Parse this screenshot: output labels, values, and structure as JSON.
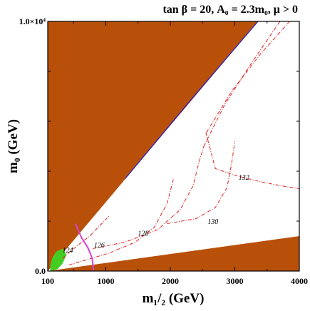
{
  "chart_data": {
    "type": "line",
    "title": "tan β = 20, A₀ = 2.3m₀,  μ > 0",
    "xlabel": "m₁/₂ (GeV)",
    "ylabel": "m₀ (GeV)",
    "xlim": [
      100,
      4000
    ],
    "ylim": [
      0,
      10000
    ],
    "x_ticks": [
      {
        "value": 100,
        "label": "100"
      },
      {
        "value": 1000,
        "label": "1000"
      },
      {
        "value": 2000,
        "label": "2000"
      },
      {
        "value": 3000,
        "label": "3000"
      },
      {
        "value": 4000,
        "label": "4000"
      }
    ],
    "y_ticks": [
      {
        "value": 0,
        "label": "0.0"
      },
      {
        "value": 10000,
        "label": "1.0×10⁴"
      }
    ],
    "colors": {
      "excluded": "#b8500a",
      "higgs_contour": "#e02020",
      "pink_curve": "#e040d0",
      "green_region": "#44cc22",
      "blue_edge": "#2020cc"
    },
    "regions": [
      {
        "name": "upper_excluded",
        "points": [
          [
            100,
            10000
          ],
          [
            3360,
            10000
          ],
          [
            100,
            0
          ]
        ]
      },
      {
        "name": "lower_excluded",
        "points": [
          [
            100,
            0
          ],
          [
            4000,
            1400
          ],
          [
            4000,
            0
          ]
        ]
      },
      {
        "name": "green_region",
        "points": [
          [
            140,
            0
          ],
          [
            250,
            80
          ],
          [
            330,
            300
          ],
          [
            390,
            650
          ],
          [
            330,
            900
          ],
          [
            230,
            780
          ],
          [
            170,
            520
          ],
          [
            140,
            250
          ]
        ]
      }
    ],
    "series": [
      {
        "label": "124",
        "x": [
          330,
          420,
          560,
          750,
          900,
          1050
        ],
        "y": [
          500,
          720,
          1020,
          1400,
          1800,
          2200
        ],
        "label_at": [
          410,
          750
        ]
      },
      {
        "label": "126",
        "x": [
          430,
          700,
          1050,
          1450,
          1750,
          1950,
          2050
        ],
        "y": [
          250,
          450,
          720,
          1150,
          1750,
          2700,
          3700
        ],
        "label_at": [
          900,
          950
        ]
      },
      {
        "label": "128",
        "x": [
          800,
          1300,
          1800,
          2150,
          2350,
          2450,
          2520
        ],
        "y": [
          900,
          1160,
          1650,
          2450,
          3400,
          4400,
          5000
        ],
        "label_at": [
          1580,
          1410
        ]
      },
      {
        "label": "130",
        "x": [
          1950,
          2400,
          2700,
          2880,
          2950,
          3000
        ],
        "y": [
          1900,
          2100,
          2550,
          3350,
          4300,
          5200
        ],
        "label_at": [
          2660,
          1880
        ]
      },
      {
        "label": "132",
        "x": [
          2550,
          2700,
          3050,
          3450,
          3800,
          4000
        ],
        "y": [
          5550,
          4100,
          3800,
          3550,
          3380,
          3300
        ],
        "label_at": [
          3140,
          3660
        ]
      },
      {
        "label": "",
        "x": [
          2520,
          2850,
          3250,
          3700
        ],
        "y": [
          5000,
          6700,
          8300,
          10000
        ],
        "label_at": null
      },
      {
        "label": "",
        "x": [
          2560,
          2950,
          3400,
          3850
        ],
        "y": [
          5550,
          7200,
          8700,
          10000
        ],
        "label_at": null
      }
    ],
    "extra_curves": [
      {
        "name": "pink_curve",
        "x": [
          530,
          620,
          720,
          790,
          810
        ],
        "y": [
          1900,
          1350,
          950,
          500,
          20
        ]
      },
      {
        "name": "blue_edge",
        "x": [
          1300,
          2300,
          3360
        ],
        "y": [
          3700,
          6800,
          10000
        ]
      }
    ],
    "grid": false,
    "legend": "none"
  }
}
